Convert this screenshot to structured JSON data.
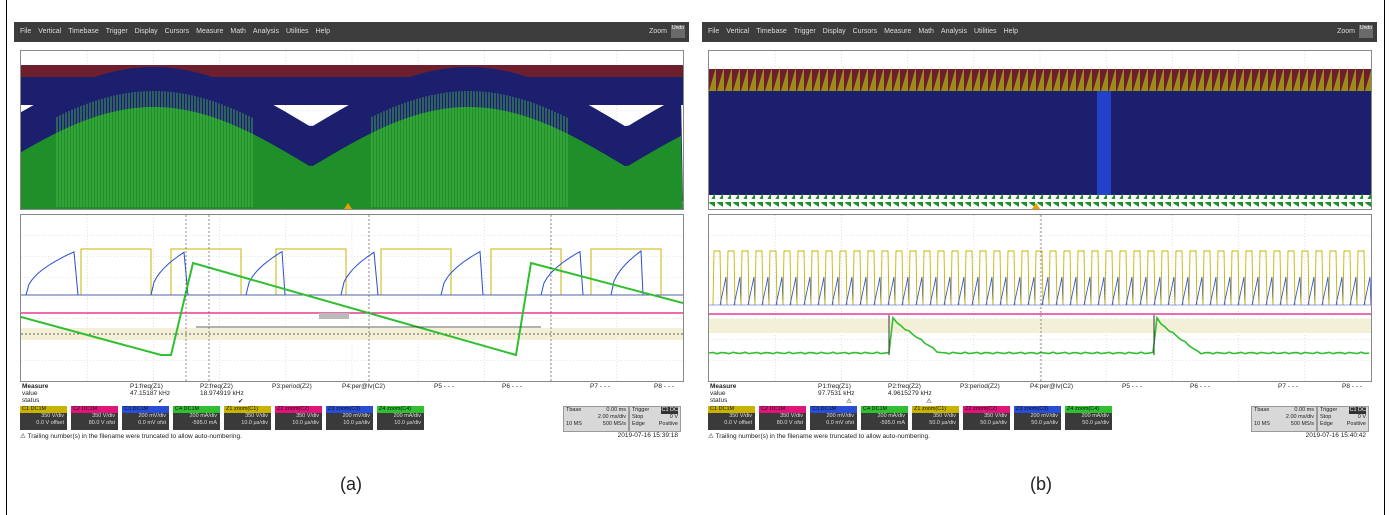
{
  "panels": [
    {
      "menu": [
        "File",
        "Vertical",
        "Timebase",
        "Trigger",
        "Display",
        "Cursors",
        "Measure",
        "Math",
        "Analysis",
        "Utilities",
        "Help"
      ],
      "zoom_label": "Zoom",
      "undo_label": "Undo",
      "measure": {
        "heading": "Measure",
        "row_value": "value",
        "row_status": "status",
        "params": [
          {
            "name": "P1:freq(Z1)",
            "value": "47.15187 kHz",
            "status": "✔"
          },
          {
            "name": "P2:freq(Z2)",
            "value": "18.974919 kHz",
            "status": "✔"
          },
          {
            "name": "P3:period(Z2)",
            "value": "",
            "status": ""
          },
          {
            "name": "P4:per@lv(C2)",
            "value": "",
            "status": ""
          },
          {
            "name": "P5 - - -",
            "value": "",
            "status": ""
          },
          {
            "name": "P6 - - -",
            "value": "",
            "status": ""
          },
          {
            "name": "P7 - - -",
            "value": "",
            "status": ""
          },
          {
            "name": "P8 - - -",
            "value": "",
            "status": ""
          }
        ]
      },
      "channels": [
        {
          "name": "C1",
          "tag": "DC1M",
          "l1": "350 V/div",
          "l2": "0.0 V offset",
          "color": "#c8b400"
        },
        {
          "name": "C2",
          "tag": "DC1M",
          "l1": "350 V/div",
          "l2": "80.0 V ofst",
          "color": "#e0157a"
        },
        {
          "name": "C3",
          "tag": "DC1M",
          "l1": "200 mV/div",
          "l2": "0.0 mV ofst",
          "color": "#2a4dd6"
        },
        {
          "name": "C4",
          "tag": "DC1M",
          "l1": "200 mA/div",
          "l2": "-595.0 mA",
          "color": "#2fbf2f"
        },
        {
          "name": "Z1",
          "tag": "zoom(C1)",
          "l1": "350 V/div",
          "l2": "10.0 µs/div",
          "color": "#c8b400"
        },
        {
          "name": "Z2",
          "tag": "zoom(C2)",
          "l1": "350 V/div",
          "l2": "10.0 µs/div",
          "color": "#e0157a"
        },
        {
          "name": "Z3",
          "tag": "zoom(C3)",
          "l1": "200 mV/div",
          "l2": "10.0 µs/div",
          "color": "#2a4dd6"
        },
        {
          "name": "Z4",
          "tag": "zoom(C4)",
          "l1": "200 mA/div",
          "l2": "10.0 µs/div",
          "color": "#2fbf2f"
        }
      ],
      "timebase": {
        "label": "Tbase",
        "offset": "0.00 ms",
        "div": "2.00 ms/div",
        "samples": "10 MS",
        "rate": "500 MS/s"
      },
      "trigger": {
        "label": "Trigger",
        "mode": "C1 DC",
        "state": "Stop",
        "level": "0 V",
        "type": "Edge",
        "slope": "Positive"
      },
      "warning": "Trailing number(s) in the filename were truncated to allow auto-numbering.",
      "timestamp": "2019-07-16 15:39:18",
      "caption": "(a)"
    },
    {
      "menu": [
        "File",
        "Vertical",
        "Timebase",
        "Trigger",
        "Display",
        "Cursors",
        "Measure",
        "Math",
        "Analysis",
        "Utilities",
        "Help"
      ],
      "zoom_label": "Zoom",
      "undo_label": "Undo",
      "measure": {
        "heading": "Measure",
        "row_value": "value",
        "row_status": "status",
        "params": [
          {
            "name": "P1:freq(Z1)",
            "value": "97.7531 kHz",
            "status": "⚠"
          },
          {
            "name": "P2:freq(Z2)",
            "value": "4.9615279 kHz",
            "status": "⚠"
          },
          {
            "name": "P3:period(Z2)",
            "value": "",
            "status": ""
          },
          {
            "name": "P4:per@lv(C2)",
            "value": "",
            "status": ""
          },
          {
            "name": "P5 - - -",
            "value": "",
            "status": ""
          },
          {
            "name": "P6 - - -",
            "value": "",
            "status": ""
          },
          {
            "name": "P7 - - -",
            "value": "",
            "status": ""
          },
          {
            "name": "P8 - - -",
            "value": "",
            "status": ""
          }
        ]
      },
      "channels": [
        {
          "name": "C1",
          "tag": "DC1M",
          "l1": "350 V/div",
          "l2": "0.0 V offset",
          "color": "#c8b400"
        },
        {
          "name": "C2",
          "tag": "DC1M",
          "l1": "350 V/div",
          "l2": "80.0 V ofst",
          "color": "#e0157a"
        },
        {
          "name": "C3",
          "tag": "DC1M",
          "l1": "200 mV/div",
          "l2": "0.0 mV ofst",
          "color": "#2a4dd6"
        },
        {
          "name": "C4",
          "tag": "DC1M",
          "l1": "200 mA/div",
          "l2": "-595.0 mA",
          "color": "#2fbf2f"
        },
        {
          "name": "Z1",
          "tag": "zoom(C1)",
          "l1": "350 V/div",
          "l2": "50.0 µs/div",
          "color": "#c8b400"
        },
        {
          "name": "Z2",
          "tag": "zoom(C2)",
          "l1": "350 V/div",
          "l2": "50.0 µs/div",
          "color": "#e0157a"
        },
        {
          "name": "Z3",
          "tag": "zoom(C3)",
          "l1": "200 mV/div",
          "l2": "50.0 µs/div",
          "color": "#2a4dd6"
        },
        {
          "name": "Z4",
          "tag": "zoom(C4)",
          "l1": "200 mA/div",
          "l2": "50.0 µs/div",
          "color": "#2fbf2f"
        }
      ],
      "timebase": {
        "label": "Tbase",
        "offset": "0.00 ms",
        "div": "2.00 ms/div",
        "samples": "10 MS",
        "rate": "500 MS/s"
      },
      "trigger": {
        "label": "Trigger",
        "mode": "C1 DC",
        "state": "Stop",
        "level": "0 V",
        "type": "Edge",
        "slope": "Positive"
      },
      "warning": "Trailing number(s) in the filename were truncated to allow auto-numbering.",
      "timestamp": "2019-07-16 15:40:42",
      "caption": "(b)"
    }
  ],
  "trace_colors": {
    "yellow": "#c8b400",
    "magenta": "#e0157a",
    "blue": "#2a4dd6",
    "green": "#2fbf2f",
    "navy": "#1b1f6e",
    "maroon": "#6d1f2e"
  }
}
